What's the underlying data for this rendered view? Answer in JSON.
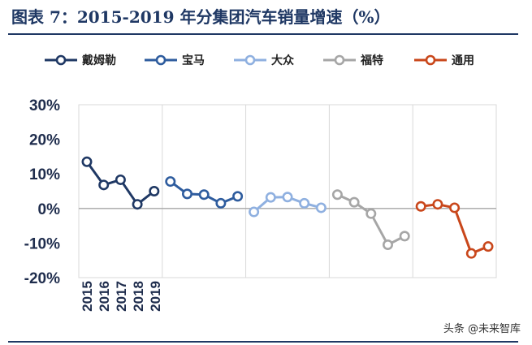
{
  "title": "图表 7：2015-2019 年分集团汽车销量增速（%）",
  "watermark": "头条 @未来智库",
  "chart_data": {
    "type": "line",
    "x": [
      "2015",
      "2016",
      "2017",
      "2018",
      "2019"
    ],
    "y_ticks": [
      "30%",
      "20%",
      "10%",
      "0%",
      "-10%",
      "-20%"
    ],
    "ylim": [
      -20,
      30
    ],
    "grid": true,
    "legend_position": "top",
    "series": [
      {
        "name": "戴姆勒",
        "color": "#1f3864",
        "values": [
          13.5,
          6.8,
          8.3,
          1.2,
          5.0
        ]
      },
      {
        "name": "宝马",
        "color": "#2e5c9e",
        "values": [
          7.8,
          4.2,
          4.0,
          1.5,
          3.5
        ]
      },
      {
        "name": "大众",
        "color": "#8fb0e0",
        "values": [
          -1.0,
          3.2,
          3.3,
          1.5,
          0.2
        ]
      },
      {
        "name": "福特",
        "color": "#a6a6a6",
        "values": [
          4.0,
          1.8,
          -1.5,
          -10.5,
          -8.0
        ]
      },
      {
        "name": "通用",
        "color": "#c9471b",
        "values": [
          0.6,
          1.2,
          0.2,
          -13.0,
          -11.0
        ]
      }
    ]
  }
}
